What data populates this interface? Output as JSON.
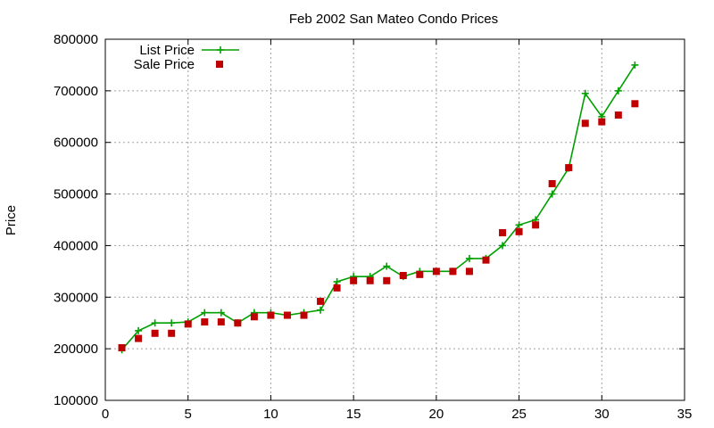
{
  "chart_data": {
    "type": "line",
    "title": "Feb 2002 San Mateo Condo Prices",
    "xlabel": "",
    "ylabel": "Price",
    "xlim": [
      0,
      35
    ],
    "ylim": [
      100000,
      800000
    ],
    "x_ticks": [
      0,
      5,
      10,
      15,
      20,
      25,
      30,
      35
    ],
    "y_ticks": [
      100000,
      200000,
      300000,
      400000,
      500000,
      600000,
      700000,
      800000
    ],
    "grid": true,
    "legend_position": "top-left",
    "series": [
      {
        "name": "List Price",
        "style": "line-with-plus-markers",
        "color": "#00a000",
        "x": [
          1,
          2,
          3,
          4,
          5,
          6,
          7,
          8,
          9,
          10,
          11,
          12,
          13,
          14,
          15,
          16,
          17,
          18,
          19,
          20,
          21,
          22,
          23,
          24,
          25,
          26,
          27,
          28,
          29,
          30,
          31,
          32
        ],
        "values": [
          198000,
          235000,
          250000,
          250000,
          252000,
          270000,
          270000,
          250000,
          270000,
          270000,
          265000,
          270000,
          275000,
          330000,
          340000,
          340000,
          360000,
          340000,
          350000,
          350000,
          350000,
          375000,
          375000,
          400000,
          440000,
          450000,
          500000,
          550000,
          695000,
          650000,
          700000,
          750000
        ]
      },
      {
        "name": "Sale Price",
        "style": "square-markers",
        "color": "#c00000",
        "x": [
          1,
          2,
          3,
          4,
          5,
          6,
          7,
          8,
          9,
          10,
          11,
          12,
          13,
          14,
          15,
          16,
          17,
          18,
          19,
          20,
          21,
          22,
          23,
          24,
          25,
          26,
          27,
          28,
          29,
          30,
          31,
          32
        ],
        "values": [
          202000,
          220000,
          230000,
          230000,
          248000,
          252000,
          252000,
          250000,
          262000,
          265000,
          265000,
          265000,
          292000,
          318000,
          332000,
          332000,
          332000,
          342000,
          344000,
          350000,
          350000,
          350000,
          372000,
          425000,
          427000,
          440000,
          520000,
          551000,
          637000,
          640000,
          653000,
          675000
        ]
      }
    ]
  }
}
